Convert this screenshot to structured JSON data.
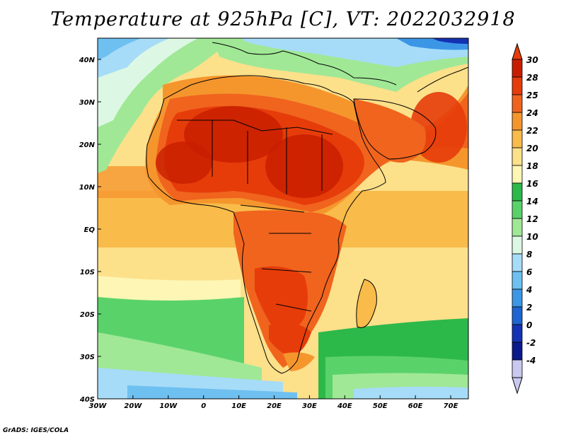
{
  "title": "Temperature at 925hPa [C], VT: 2022032918",
  "credit": "GrADS: IGES/COLA",
  "map": {
    "lon_range": [
      -30,
      75
    ],
    "lat_range": [
      -40,
      45
    ],
    "lon_ticks": [
      {
        "lon": -30,
        "label": "30W"
      },
      {
        "lon": -20,
        "label": "20W"
      },
      {
        "lon": -10,
        "label": "10W"
      },
      {
        "lon": 0,
        "label": "0"
      },
      {
        "lon": 10,
        "label": "10E"
      },
      {
        "lon": 20,
        "label": "20E"
      },
      {
        "lon": 30,
        "label": "30E"
      },
      {
        "lon": 40,
        "label": "40E"
      },
      {
        "lon": 50,
        "label": "50E"
      },
      {
        "lon": 60,
        "label": "60E"
      },
      {
        "lon": 70,
        "label": "70E"
      }
    ],
    "lat_ticks": [
      {
        "lat": 40,
        "label": "40N"
      },
      {
        "lat": 30,
        "label": "30N"
      },
      {
        "lat": 20,
        "label": "20N"
      },
      {
        "lat": 10,
        "label": "10N"
      },
      {
        "lat": 0,
        "label": "EQ"
      },
      {
        "lat": -10,
        "label": "10S"
      },
      {
        "lat": -20,
        "label": "20S"
      },
      {
        "lat": -30,
        "label": "30S"
      },
      {
        "lat": -40,
        "label": "40S"
      }
    ]
  },
  "colorbar": {
    "levels": [
      {
        "label": "30",
        "color": "#c81e00"
      },
      {
        "label": "28",
        "color": "#e63c0a"
      },
      {
        "label": "25",
        "color": "#f0641e"
      },
      {
        "label": "24",
        "color": "#f5962d"
      },
      {
        "label": "22",
        "color": "#f9bb4a"
      },
      {
        "label": "20",
        "color": "#fde08a"
      },
      {
        "label": "18",
        "color": "#fdf6b4"
      },
      {
        "label": "16",
        "color": "#2db84a"
      },
      {
        "label": "14",
        "color": "#5ad26a"
      },
      {
        "label": "12",
        "color": "#a0e896"
      },
      {
        "label": "10",
        "color": "#dcf8e4"
      },
      {
        "label": "8",
        "color": "#a6dcf8"
      },
      {
        "label": "6",
        "color": "#6ec0f0"
      },
      {
        "label": "4",
        "color": "#3c96e6"
      },
      {
        "label": "2",
        "color": "#1e64d2"
      },
      {
        "label": "0",
        "color": "#1432b4"
      },
      {
        "label": "-2",
        "color": "#0a1a8c"
      },
      {
        "label": "-4",
        "color": "#c8c8f0"
      }
    ],
    "top_arrow_color": "#e63c0a",
    "bottom_arrow_color": "#c8c8f0"
  }
}
